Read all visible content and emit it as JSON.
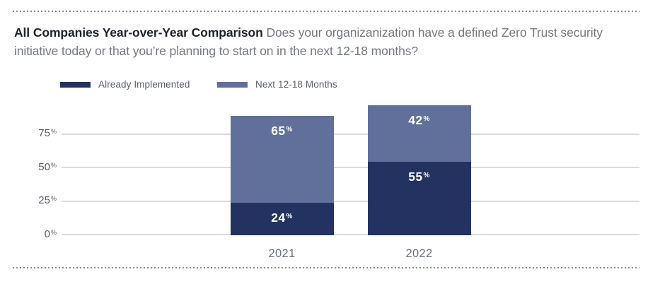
{
  "panel": {
    "title_bold": "All Companies Year-over-Year Comparison",
    "title_question": "Does your organizanization have a defined Zero Trust security initiative today or that you’re planning to start on in the next 12-18 months?"
  },
  "legend": {
    "items": [
      {
        "label": "Already Implemented",
        "color": "#233260"
      },
      {
        "label": "Next 12-18 Months",
        "color": "#61709a"
      }
    ]
  },
  "chart_data": {
    "type": "bar",
    "stacked": true,
    "categories": [
      "2021",
      "2022"
    ],
    "series": [
      {
        "name": "Already Implemented",
        "color": "#233260",
        "values": [
          24,
          55
        ]
      },
      {
        "name": "Next 12-18 Months",
        "color": "#61709a",
        "values": [
          65,
          42
        ]
      }
    ],
    "value_suffix": "%",
    "y_ticks": [
      0,
      25,
      50,
      75
    ],
    "ylim": [
      0,
      100
    ],
    "grid": true,
    "gridline_color": "#d9dbe1",
    "legend_position": "top",
    "bar_label_color": "#ffffff",
    "axis_tick_color": "#575d6b",
    "category_label_color": "#6a7080"
  }
}
